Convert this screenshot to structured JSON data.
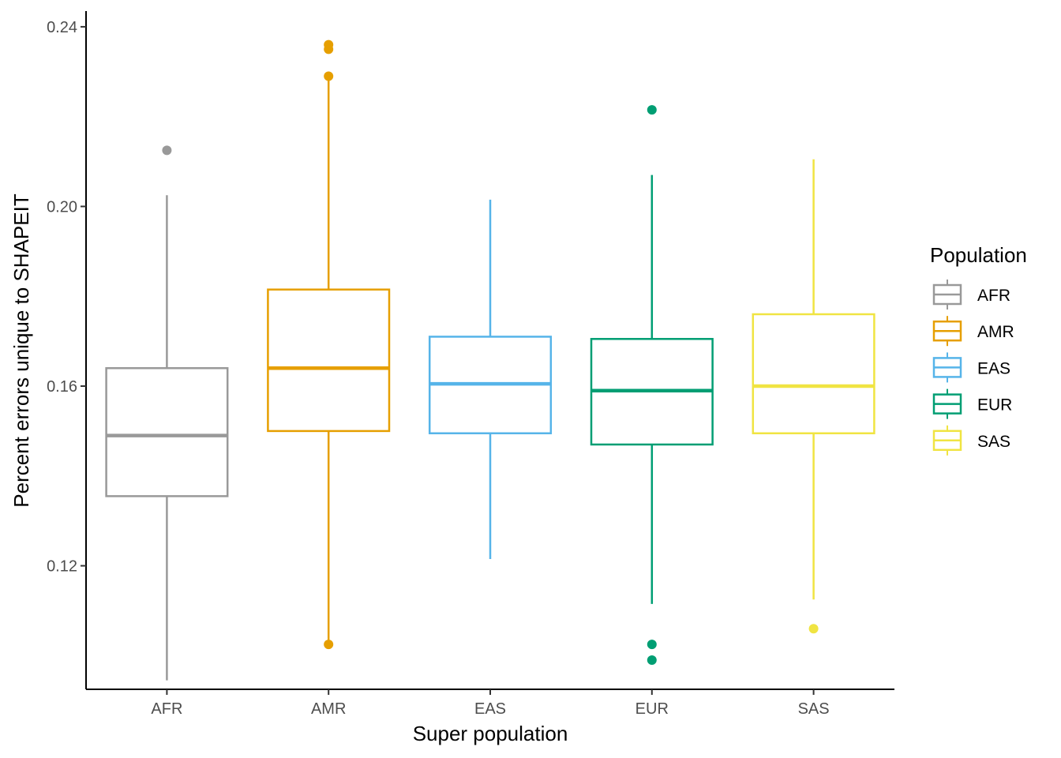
{
  "chart_data": {
    "type": "boxplot",
    "xlabel": "Super population",
    "ylabel": "Percent errors unique to SHAPEIT",
    "ylim": [
      0.0925,
      0.2435
    ],
    "y_ticks": [
      0.12,
      0.16,
      0.2,
      0.24
    ],
    "y_tick_labels": [
      "0.12",
      "0.16",
      "0.20",
      "0.24"
    ],
    "categories": [
      "AFR",
      "AMR",
      "EAS",
      "EUR",
      "SAS"
    ],
    "grid": false,
    "legend": {
      "title": "Population",
      "position": "right",
      "entries": [
        "AFR",
        "AMR",
        "EAS",
        "EUR",
        "SAS"
      ]
    },
    "series": [
      {
        "category": "AFR",
        "color": "#999999",
        "whisker_low": 0.0945,
        "q1": 0.1355,
        "median": 0.149,
        "q3": 0.164,
        "whisker_high": 0.2025,
        "outliers": [
          0.2125
        ]
      },
      {
        "category": "AMR",
        "color": "#E69F00",
        "whisker_low": 0.1035,
        "q1": 0.15,
        "median": 0.164,
        "q3": 0.1815,
        "whisker_high": 0.229,
        "outliers": [
          0.236,
          0.235,
          0.229,
          0.1025
        ]
      },
      {
        "category": "EAS",
        "color": "#56B4E9",
        "whisker_low": 0.1215,
        "q1": 0.1495,
        "median": 0.1605,
        "q3": 0.171,
        "whisker_high": 0.2015,
        "outliers": []
      },
      {
        "category": "EUR",
        "color": "#009E73",
        "whisker_low": 0.1115,
        "q1": 0.147,
        "median": 0.159,
        "q3": 0.1705,
        "whisker_high": 0.207,
        "outliers": [
          0.2215,
          0.1025,
          0.099
        ]
      },
      {
        "category": "SAS",
        "color": "#F0E442",
        "whisker_low": 0.1125,
        "q1": 0.1495,
        "median": 0.16,
        "q3": 0.176,
        "whisker_high": 0.2105,
        "outliers": [
          0.106
        ]
      }
    ]
  }
}
